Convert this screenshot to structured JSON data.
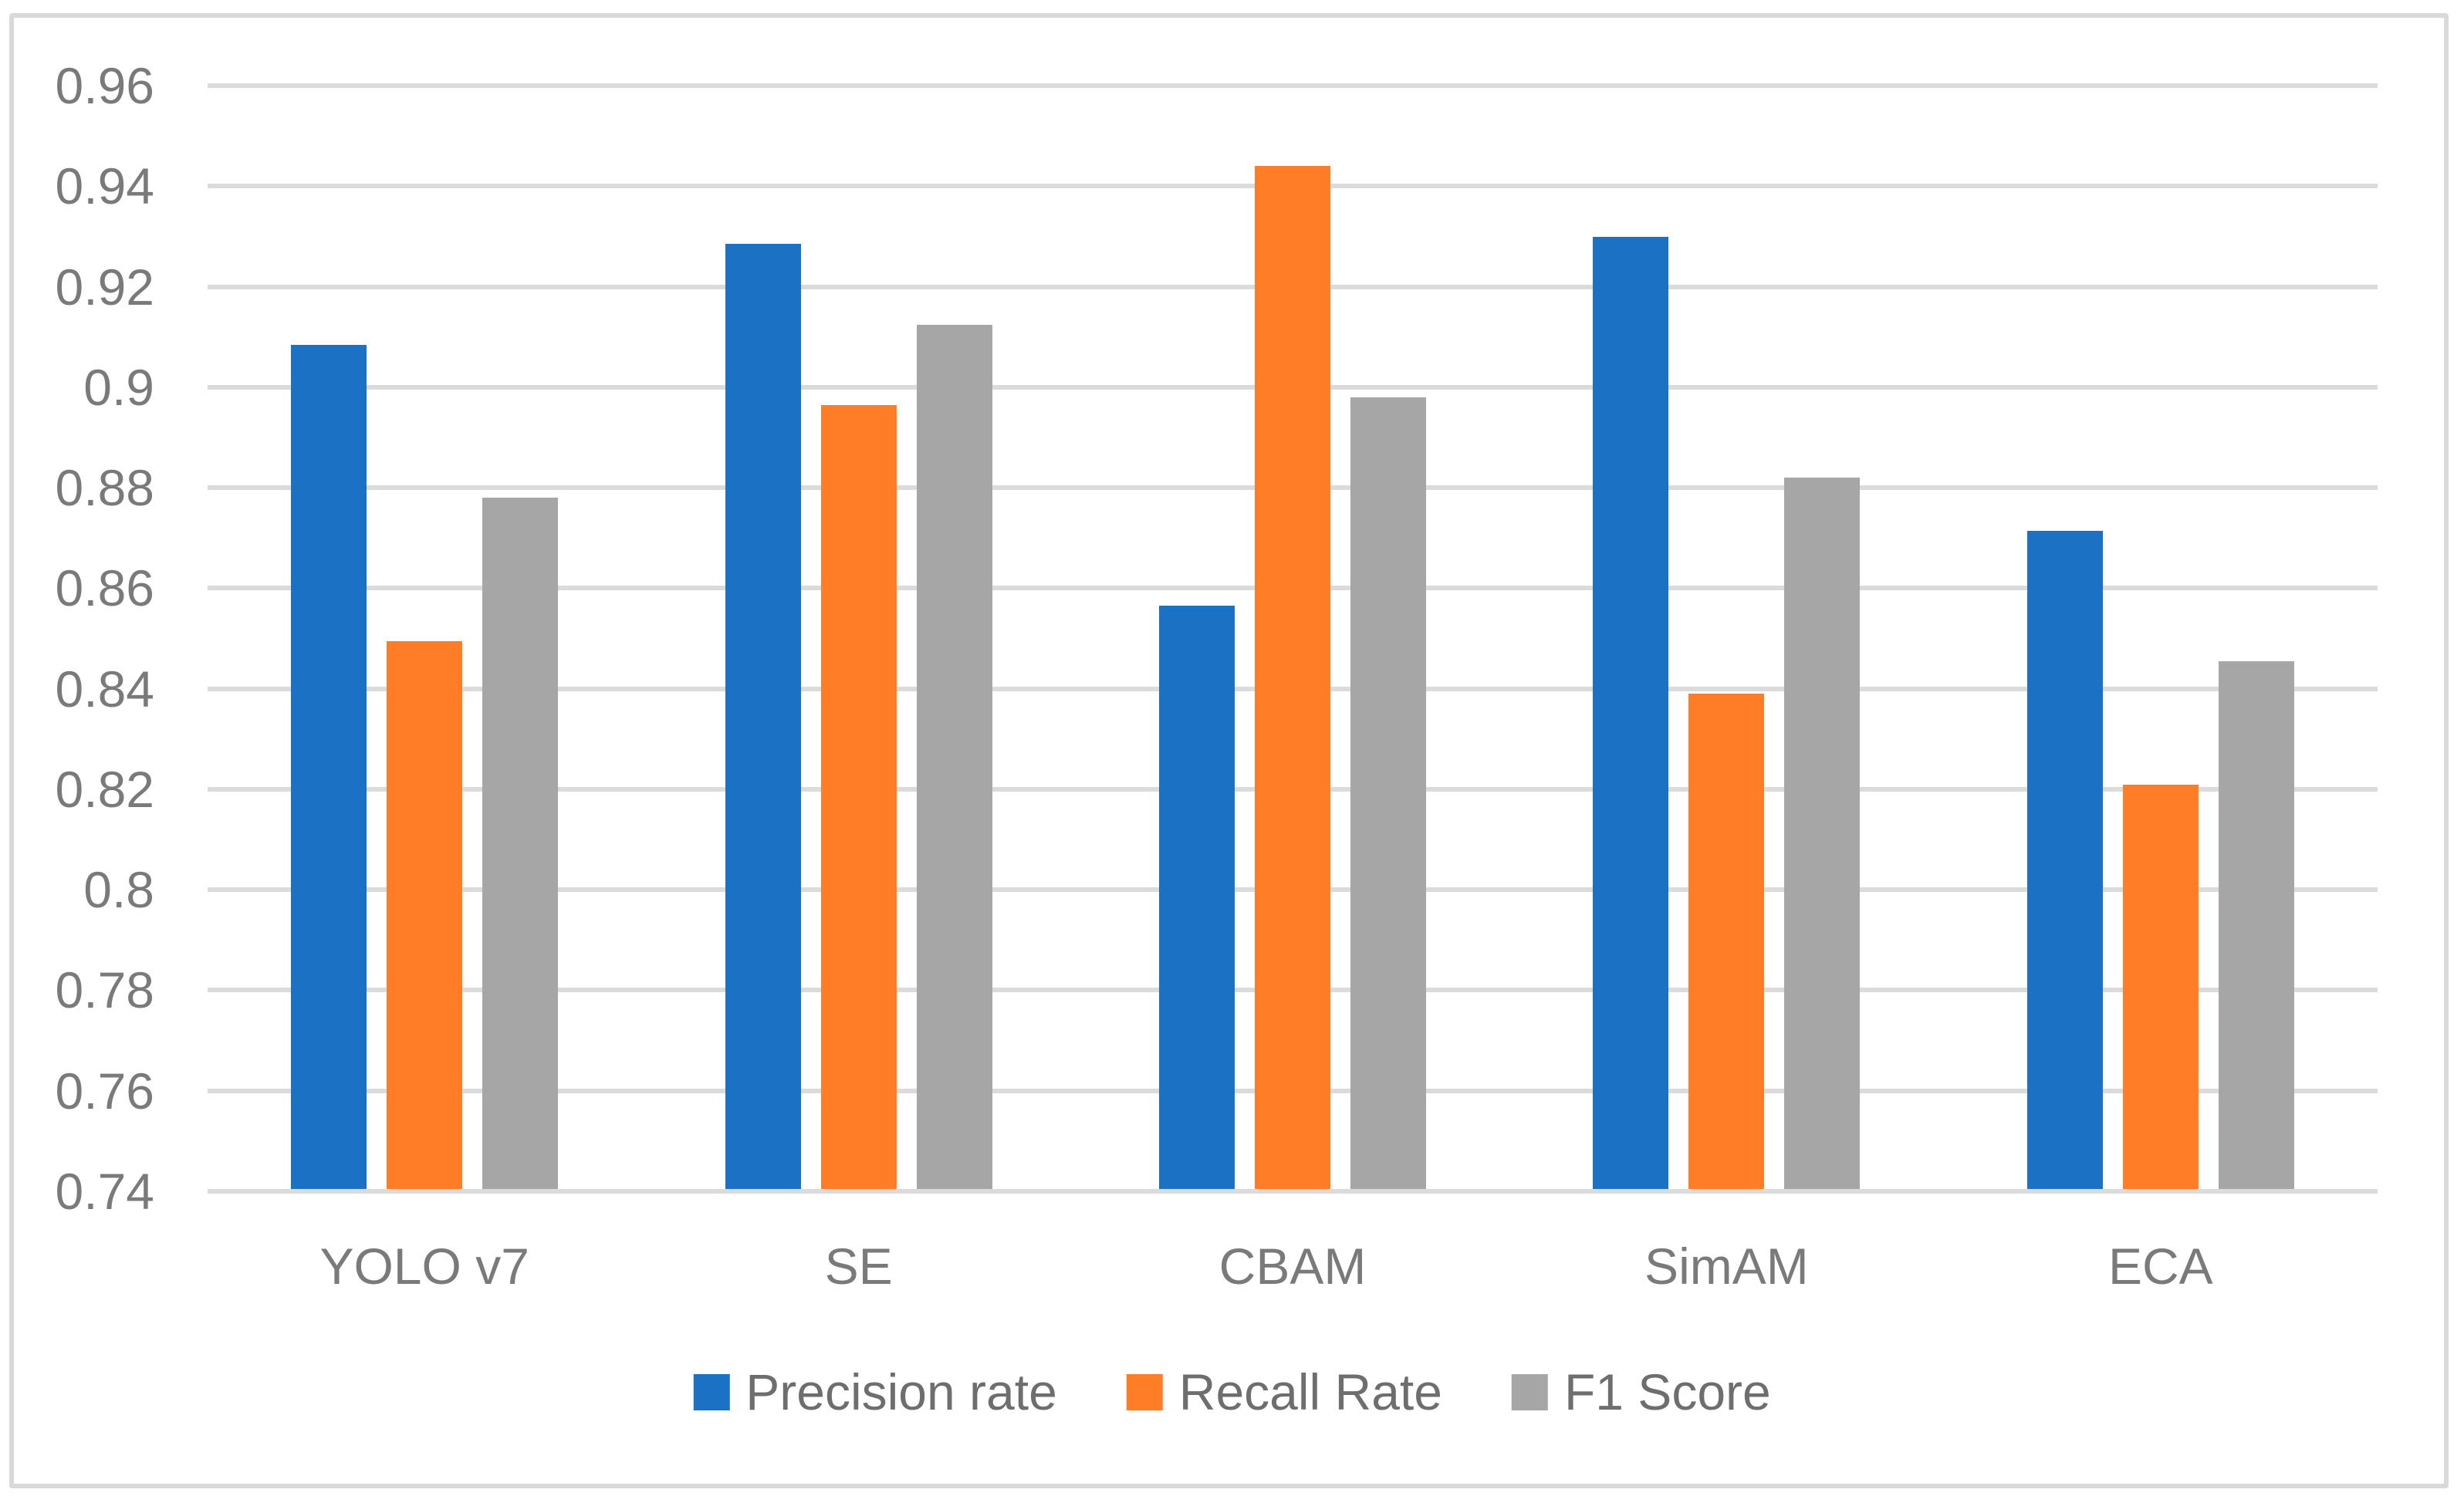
{
  "figure": {
    "background": "#FFFFFF",
    "border_color": "#D9D9D9"
  },
  "chart_data": {
    "type": "bar",
    "title": "",
    "xlabel": "",
    "ylabel": "",
    "categories": [
      "YOLO v7",
      "SE",
      "CBAM",
      "SimAM",
      "ECA"
    ],
    "series": [
      {
        "name": "Precision rate",
        "color": "#1B72C4",
        "values": [
          0.908,
          0.928,
          0.856,
          0.9295,
          0.871
        ]
      },
      {
        "name": "Recall Rate",
        "color": "#FF7D27",
        "values": [
          0.849,
          0.896,
          0.9435,
          0.8385,
          0.8205
        ]
      },
      {
        "name": "F1 Score",
        "color": "#A6A6A6",
        "values": [
          0.8775,
          0.912,
          0.8975,
          0.8815,
          0.845
        ]
      }
    ],
    "ylim": [
      0.74,
      0.96
    ],
    "ytick_step": 0.02,
    "ytick_labels": [
      "0.96",
      "0.94",
      "0.92",
      "0.9",
      "0.88",
      "0.86",
      "0.84",
      "0.82",
      "0.8",
      "0.78",
      "0.76",
      "0.74"
    ],
    "grid": true,
    "gridline_color": "#DBDBDB",
    "axis_lines": false,
    "legend_position": "bottom",
    "tick_text_color": "#7A7A7A",
    "legend_text_color": "#6E6E6E"
  }
}
